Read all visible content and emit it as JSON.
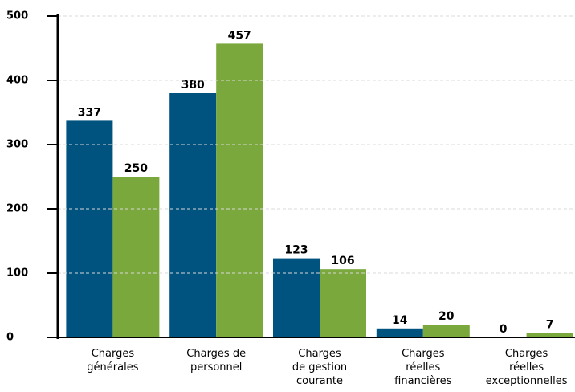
{
  "chart_data": {
    "type": "bar",
    "categories": [
      "Charges\ngénérales",
      "Charges de\npersonnel",
      "Charges\nde gestion\ncourante",
      "Charges\nréelles\nfinancières",
      "Charges\nréelles\nexceptionnelles"
    ],
    "series": [
      {
        "color": "#00527f",
        "values": [
          337,
          380,
          123,
          14,
          0
        ]
      },
      {
        "color": "#7aa83d",
        "values": [
          250,
          457,
          106,
          20,
          7
        ]
      }
    ],
    "ylim": [
      0,
      500
    ],
    "yticks": [
      0,
      100,
      200,
      300,
      400,
      500
    ],
    "grid": true
  }
}
